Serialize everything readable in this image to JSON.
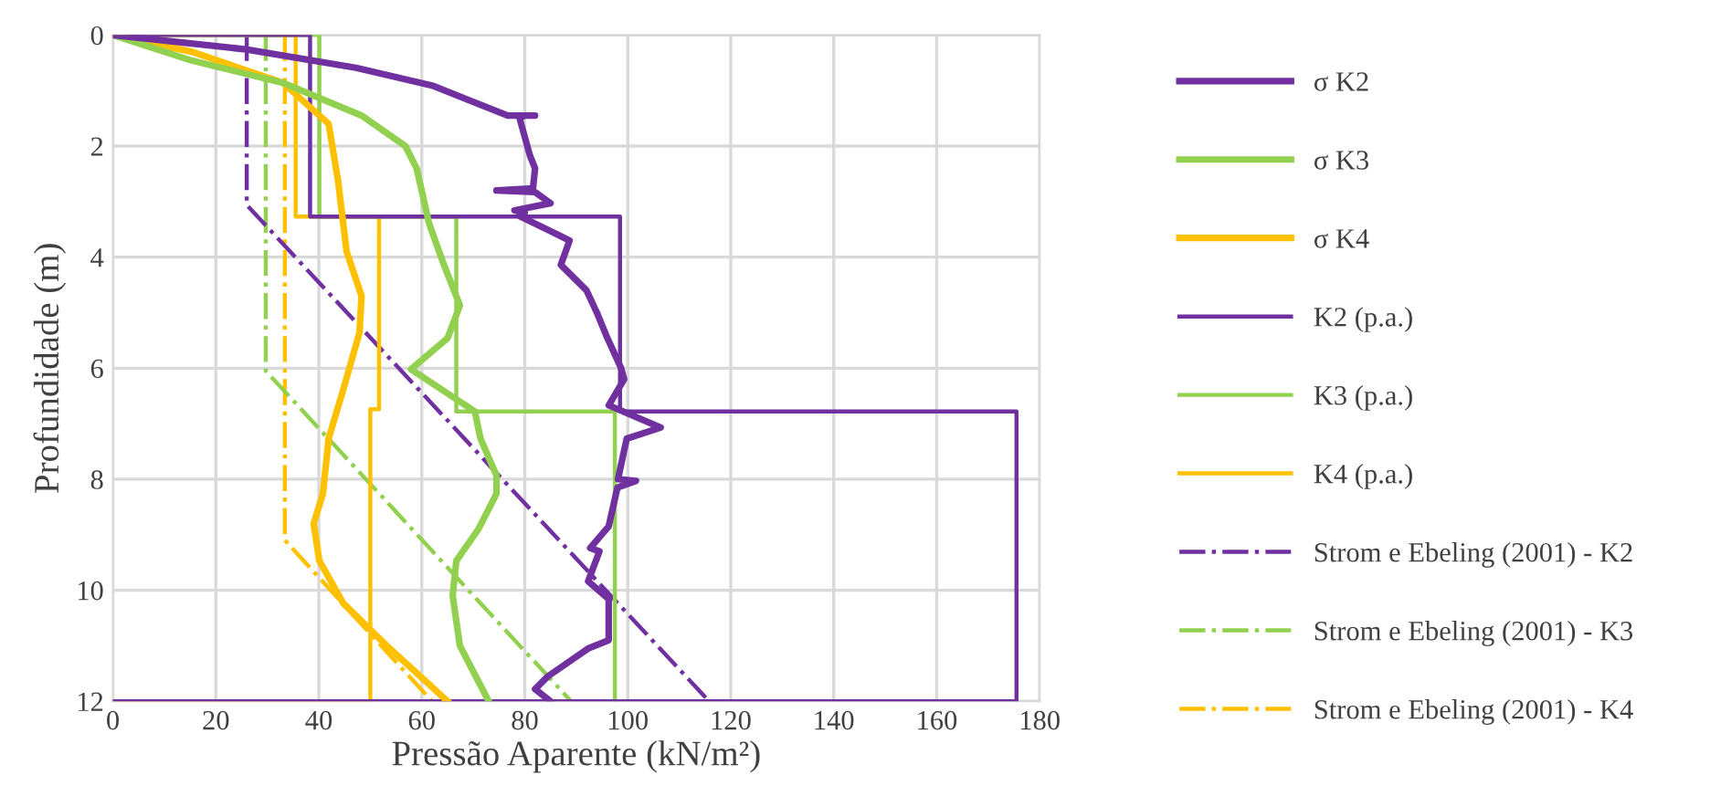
{
  "chart_data": {
    "type": "line",
    "xlabel": "Pressão Aparente (kN/m²)",
    "ylabel": "Profundidade (m)",
    "xlim": [
      0,
      180
    ],
    "xticks": [
      0,
      20,
      40,
      60,
      80,
      100,
      120,
      140,
      160,
      180
    ],
    "ylim": [
      12,
      0
    ],
    "yticks": [
      0,
      2,
      4,
      6,
      8,
      10,
      12
    ],
    "grid": true,
    "legend": "right",
    "marker": "none",
    "series": [
      {
        "name": "σ K2",
        "color": "#7030a0",
        "line_style": "solid",
        "x": [
          0,
          25.9,
          47.2,
          62,
          76.7,
          80,
          82,
          80,
          79,
          81,
          82,
          81.6,
          74.5,
          82,
          85,
          78,
          80,
          79,
          88.7,
          87,
          92,
          94,
          96,
          98.7,
          99.3,
          96.3,
          106.4,
          99.8,
          98.1,
          101.6,
          98,
          96.3,
          92.7,
          94.5,
          92.3,
          96.3,
          96.3,
          92.3,
          84.5,
          82,
          85
        ],
        "values": [
          0,
          0.26,
          0.59,
          0.91,
          1.45,
          1.45,
          1.45,
          1.45,
          1.5,
          2.17,
          2.4,
          2.76,
          2.8,
          2.83,
          3.03,
          3.16,
          3.2,
          3.26,
          3.7,
          4.14,
          4.6,
          5.0,
          5.45,
          6.0,
          6.2,
          6.67,
          7.07,
          7.27,
          8.0,
          8.03,
          8.15,
          8.85,
          9.24,
          9.3,
          9.84,
          10.16,
          10.9,
          11.05,
          11.55,
          11.78,
          12
        ]
      },
      {
        "name": "σ K3",
        "color": "#92d050",
        "line_style": "solid",
        "x": [
          0,
          15.3,
          33,
          48.3,
          56.8,
          59,
          61.4,
          64.3,
          67.4,
          65,
          57.9,
          70.3,
          71.4,
          74.5,
          74.5,
          71,
          66.7,
          66,
          67.4,
          73
        ],
        "values": [
          0,
          0.46,
          0.86,
          1.45,
          2.0,
          2.4,
          3.39,
          4.14,
          4.87,
          5.46,
          6.02,
          6.78,
          7.27,
          7.93,
          8.26,
          8.9,
          9.47,
          10.1,
          11,
          12
        ]
      },
      {
        "name": "σ K4",
        "color": "#ffc000",
        "line_style": "solid",
        "x": [
          0,
          15.3,
          33,
          41.9,
          43.7,
          45.4,
          48.3,
          47.9,
          44.7,
          41.9,
          40.8,
          39,
          40.1,
          44.7,
          53.2,
          65
        ],
        "values": [
          0,
          0.3,
          0.86,
          1.6,
          2.6,
          3.9,
          4.7,
          5.36,
          6.4,
          7.27,
          8.26,
          8.8,
          9.47,
          10.23,
          11,
          12
        ]
      },
      {
        "name": "K2 (p.a.)",
        "color": "#7030a0",
        "line_style": "solid",
        "x": [
          0,
          38.3,
          38.3,
          98.5,
          98.5,
          175.5,
          175.5,
          0
        ],
        "values": [
          0,
          0,
          3.27,
          3.27,
          6.78,
          6.78,
          12,
          12
        ]
      },
      {
        "name": "K3 (p.a.)",
        "color": "#92d050",
        "line_style": "solid",
        "x": [
          0,
          40.1,
          40.1,
          66.7,
          66.7,
          97.5,
          97.5
        ],
        "values": [
          0,
          0,
          3.27,
          3.27,
          6.78,
          6.78,
          12
        ]
      },
      {
        "name": "K4 (p.a.)",
        "color": "#ffc000",
        "line_style": "solid",
        "x": [
          0,
          35.5,
          35.5,
          51.7,
          51.7,
          50,
          50,
          0
        ],
        "values": [
          0,
          0,
          3.27,
          3.27,
          6.74,
          6.74,
          12,
          12
        ]
      },
      {
        "name": "Strom e Ebeling (2001) - K2",
        "color": "#7030a0",
        "line_style": "dashdot",
        "x": [
          26,
          26,
          115.8
        ],
        "values": [
          0,
          3.06,
          12
        ]
      },
      {
        "name": "Strom e Ebeling (2001) - K3",
        "color": "#92d050",
        "line_style": "dashdot",
        "x": [
          29.7,
          29.7,
          89
        ],
        "values": [
          0,
          6.05,
          12
        ]
      },
      {
        "name": "Strom e Ebeling (2001) - K4",
        "color": "#ffc000",
        "line_style": "dashdot",
        "x": [
          33.4,
          33.4,
          62
        ],
        "values": [
          0,
          9.1,
          12
        ]
      }
    ]
  }
}
